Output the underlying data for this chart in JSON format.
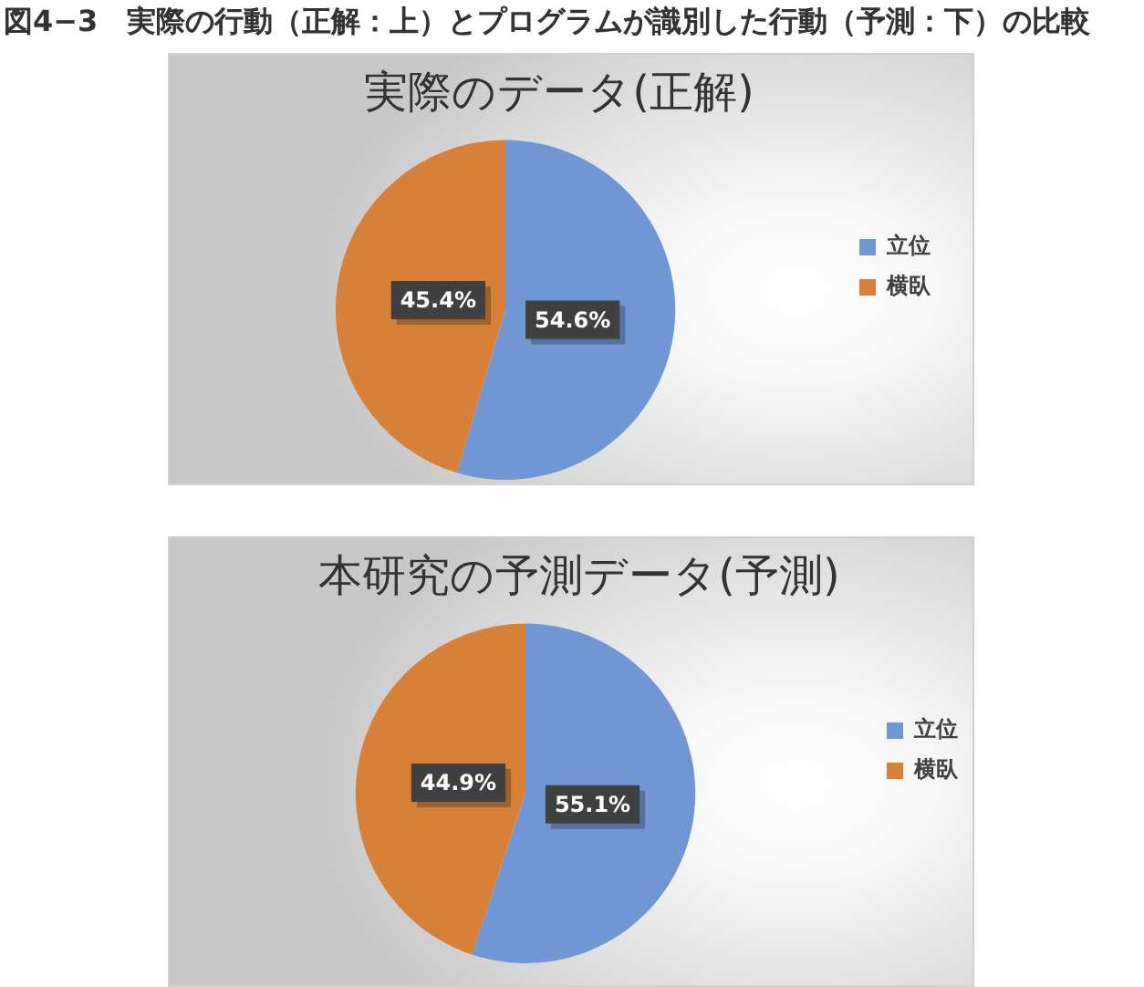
{
  "chart_data": [
    {
      "type": "pie",
      "title": "実際のデータ(正解)",
      "annotations": [
        "図4−3　実際の行動（正解：上）とプログラムが識別した行動（予測：下）の比較"
      ],
      "categories": [
        "立位",
        "横臥"
      ],
      "values": [
        54.6,
        45.4
      ],
      "colors": [
        "#7097d4",
        "#d6803a"
      ],
      "value_labels": [
        "54.6%",
        "45.4%"
      ],
      "legend": "right"
    },
    {
      "type": "pie",
      "title": "本研究の予測データ(予測)",
      "categories": [
        "立位",
        "横臥"
      ],
      "values": [
        55.1,
        44.9
      ],
      "colors": [
        "#7097d4",
        "#d6803a"
      ],
      "value_labels": [
        "55.1%",
        "44.9%"
      ],
      "legend": "right"
    }
  ]
}
